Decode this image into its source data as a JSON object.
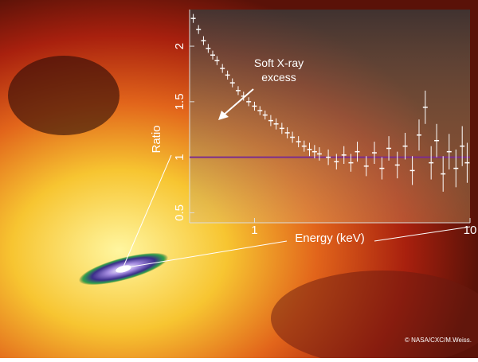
{
  "chart_data": {
    "type": "scatter",
    "xlabel": "Energy (keV)",
    "ylabel": "Ratio",
    "annotation": "Soft X-ray excess",
    "credit": "© NASA/CXC/M.Weiss.",
    "xscale": "log",
    "xlim": [
      0.5,
      10
    ],
    "xticks": [
      1,
      10
    ],
    "ylim": [
      0.41,
      2.33
    ],
    "yticks": [
      0.5,
      1,
      1.5,
      2
    ],
    "hline": 1,
    "hline_color": "#7b2d8e",
    "x": [
      0.52,
      0.55,
      0.58,
      0.61,
      0.64,
      0.67,
      0.71,
      0.75,
      0.79,
      0.84,
      0.89,
      0.94,
      1.0,
      1.06,
      1.12,
      1.19,
      1.26,
      1.34,
      1.42,
      1.5,
      1.6,
      1.7,
      1.8,
      1.9,
      2.0,
      2.2,
      2.4,
      2.6,
      2.8,
      3.0,
      3.3,
      3.6,
      3.9,
      4.2,
      4.6,
      5.0,
      5.4,
      5.8,
      6.2,
      6.6,
      7.0,
      7.5,
      8.0,
      8.6,
      9.2,
      9.7
    ],
    "series": [
      {
        "color": "#ffffff",
        "values": [
          2.25,
          2.15,
          2.05,
          1.98,
          1.92,
          1.87,
          1.8,
          1.74,
          1.67,
          1.6,
          1.55,
          1.5,
          1.46,
          1.42,
          1.38,
          1.33,
          1.3,
          1.26,
          1.22,
          1.18,
          1.14,
          1.1,
          1.07,
          1.05,
          1.03,
          1.0,
          0.96,
          1.02,
          0.95,
          1.05,
          0.92,
          1.04,
          0.9,
          1.08,
          0.93,
          1.1,
          0.88,
          1.2,
          1.45,
          0.95,
          1.15,
          0.85,
          1.05,
          0.9,
          1.1,
          0.95
        ],
        "errors": [
          0.04,
          0.04,
          0.04,
          0.04,
          0.04,
          0.04,
          0.04,
          0.04,
          0.04,
          0.04,
          0.04,
          0.04,
          0.04,
          0.04,
          0.04,
          0.05,
          0.05,
          0.05,
          0.05,
          0.05,
          0.05,
          0.05,
          0.06,
          0.06,
          0.06,
          0.07,
          0.07,
          0.08,
          0.08,
          0.09,
          0.09,
          0.1,
          0.1,
          0.11,
          0.12,
          0.12,
          0.13,
          0.14,
          0.15,
          0.15,
          0.15,
          0.16,
          0.16,
          0.17,
          0.18,
          0.18
        ]
      }
    ]
  }
}
